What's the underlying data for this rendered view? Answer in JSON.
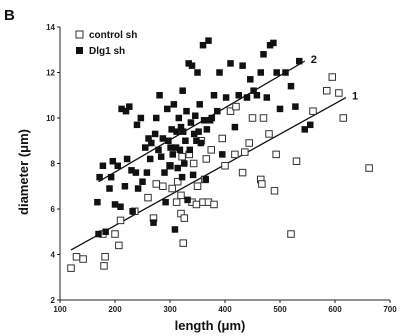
{
  "chart_data": {
    "type": "scatter",
    "panel_label": "B",
    "title": "",
    "xlabel": "length (μm)",
    "ylabel": "diameter (μm)",
    "xlim": [
      100,
      700
    ],
    "ylim": [
      2,
      14
    ],
    "xticks": [
      "100",
      "200",
      "300",
      "400",
      "500",
      "600",
      "700"
    ],
    "yticks": [
      "2",
      "4",
      "6",
      "8",
      "10",
      "12",
      "14"
    ],
    "grid": false,
    "legend_position": "top-left",
    "series": [
      {
        "name": "control sh",
        "marker": "open-square",
        "color": "#333333",
        "fit_label": "1",
        "fit": {
          "x": [
            120,
            620
          ],
          "y": [
            4.2,
            10.9
          ]
        },
        "points": [
          [
            120,
            3.4
          ],
          [
            130,
            3.9
          ],
          [
            142,
            3.8
          ],
          [
            178,
            4.9
          ],
          [
            180,
            3.5
          ],
          [
            182,
            3.9
          ],
          [
            200,
            4.9
          ],
          [
            207,
            4.4
          ],
          [
            210,
            5.5
          ],
          [
            236,
            5.9
          ],
          [
            260,
            6.5
          ],
          [
            270,
            5.6
          ],
          [
            275,
            7.1
          ],
          [
            287,
            7.0
          ],
          [
            300,
            7.9
          ],
          [
            304,
            6.9
          ],
          [
            312,
            6.3
          ],
          [
            314,
            7.2
          ],
          [
            320,
            5.8
          ],
          [
            320,
            6.6
          ],
          [
            322,
            8.3
          ],
          [
            324,
            4.5
          ],
          [
            326,
            5.6
          ],
          [
            335,
            8.4
          ],
          [
            340,
            6.3
          ],
          [
            343,
            8.0
          ],
          [
            348,
            6.2
          ],
          [
            350,
            7.0
          ],
          [
            357,
            9.0
          ],
          [
            360,
            6.3
          ],
          [
            363,
            7.3
          ],
          [
            366,
            8.2
          ],
          [
            370,
            6.3
          ],
          [
            375,
            8.6
          ],
          [
            380,
            6.2
          ],
          [
            395,
            9.1
          ],
          [
            400,
            7.9
          ],
          [
            410,
            10.3
          ],
          [
            418,
            8.4
          ],
          [
            420,
            10.5
          ],
          [
            432,
            7.6
          ],
          [
            436,
            8.5
          ],
          [
            444,
            8.9
          ],
          [
            450,
            10.0
          ],
          [
            465,
            7.3
          ],
          [
            467,
            7.1
          ],
          [
            470,
            10.0
          ],
          [
            480,
            9.3
          ],
          [
            490,
            6.8
          ],
          [
            493,
            8.4
          ],
          [
            520,
            4.9
          ],
          [
            530,
            8.1
          ],
          [
            560,
            10.3
          ],
          [
            585,
            11.2
          ],
          [
            595,
            11.8
          ],
          [
            607,
            11.1
          ],
          [
            615,
            10.0
          ],
          [
            662,
            7.8
          ]
        ]
      },
      {
        "name": "Dlg1 sh",
        "marker": "filled-square",
        "color": "#111111",
        "fit_label": "2",
        "fit": {
          "x": [
            170,
            545
          ],
          "y": [
            7.2,
            12.5
          ]
        },
        "points": [
          [
            168,
            6.3
          ],
          [
            170,
            4.9
          ],
          [
            172,
            7.4
          ],
          [
            178,
            7.9
          ],
          [
            183,
            5.0
          ],
          [
            190,
            6.9
          ],
          [
            193,
            7.4
          ],
          [
            196,
            8.1
          ],
          [
            200,
            6.2
          ],
          [
            205,
            7.9
          ],
          [
            210,
            6.1
          ],
          [
            212,
            10.4
          ],
          [
            218,
            7.0
          ],
          [
            220,
            10.3
          ],
          [
            222,
            8.2
          ],
          [
            226,
            10.5
          ],
          [
            230,
            7.7
          ],
          [
            232,
            5.9
          ],
          [
            238,
            7.6
          ],
          [
            240,
            9.7
          ],
          [
            242,
            6.9
          ],
          [
            247,
            10.0
          ],
          [
            250,
            7.2
          ],
          [
            255,
            8.7
          ],
          [
            258,
            7.6
          ],
          [
            261,
            9.1
          ],
          [
            264,
            8.2
          ],
          [
            266,
            8.9
          ],
          [
            270,
            5.4
          ],
          [
            273,
            9.3
          ],
          [
            275,
            10.0
          ],
          [
            279,
            8.6
          ],
          [
            281,
            11.0
          ],
          [
            284,
            8.3
          ],
          [
            287,
            9.1
          ],
          [
            290,
            7.6
          ],
          [
            292,
            6.3
          ],
          [
            295,
            10.4
          ],
          [
            297,
            9.0
          ],
          [
            300,
            7.9
          ],
          [
            301,
            8.7
          ],
          [
            303,
            9.5
          ],
          [
            305,
            8.4
          ],
          [
            307,
            10.6
          ],
          [
            309,
            5.1
          ],
          [
            311,
            8.7
          ],
          [
            312,
            9.4
          ],
          [
            314,
            7.8
          ],
          [
            316,
            10.0
          ],
          [
            318,
            8.6
          ],
          [
            320,
            9.6
          ],
          [
            322,
            7.4
          ],
          [
            323,
            11.2
          ],
          [
            324,
            9.4
          ],
          [
            326,
            8.0
          ],
          [
            328,
            9.0
          ],
          [
            330,
            10.3
          ],
          [
            332,
            6.4
          ],
          [
            334,
            12.4
          ],
          [
            336,
            8.6
          ],
          [
            338,
            9.8
          ],
          [
            340,
            12.3
          ],
          [
            342,
            7.5
          ],
          [
            344,
            9.3
          ],
          [
            346,
            10.1
          ],
          [
            348,
            9.0
          ],
          [
            350,
            12.0
          ],
          [
            352,
            9.4
          ],
          [
            354,
            10.6
          ],
          [
            356,
            8.9
          ],
          [
            360,
            13.2
          ],
          [
            362,
            9.9
          ],
          [
            365,
            7.3
          ],
          [
            367,
            9.5
          ],
          [
            370,
            13.4
          ],
          [
            373,
            9.9
          ],
          [
            376,
            10.0
          ],
          [
            380,
            11.0
          ],
          [
            386,
            10.3
          ],
          [
            390,
            12.0
          ],
          [
            395,
            8.4
          ],
          [
            402,
            10.9
          ],
          [
            410,
            12.4
          ],
          [
            418,
            9.6
          ],
          [
            425,
            11.0
          ],
          [
            432,
            12.3
          ],
          [
            440,
            10.9
          ],
          [
            446,
            11.7
          ],
          [
            452,
            11.2
          ],
          [
            458,
            11.0
          ],
          [
            465,
            12.0
          ],
          [
            470,
            12.8
          ],
          [
            476,
            10.9
          ],
          [
            482,
            13.2
          ],
          [
            488,
            13.3
          ],
          [
            494,
            12.0
          ],
          [
            500,
            10.4
          ],
          [
            510,
            12.0
          ],
          [
            520,
            11.4
          ],
          [
            528,
            10.5
          ],
          [
            535,
            12.5
          ],
          [
            545,
            9.5
          ],
          [
            555,
            9.7
          ]
        ]
      }
    ]
  }
}
